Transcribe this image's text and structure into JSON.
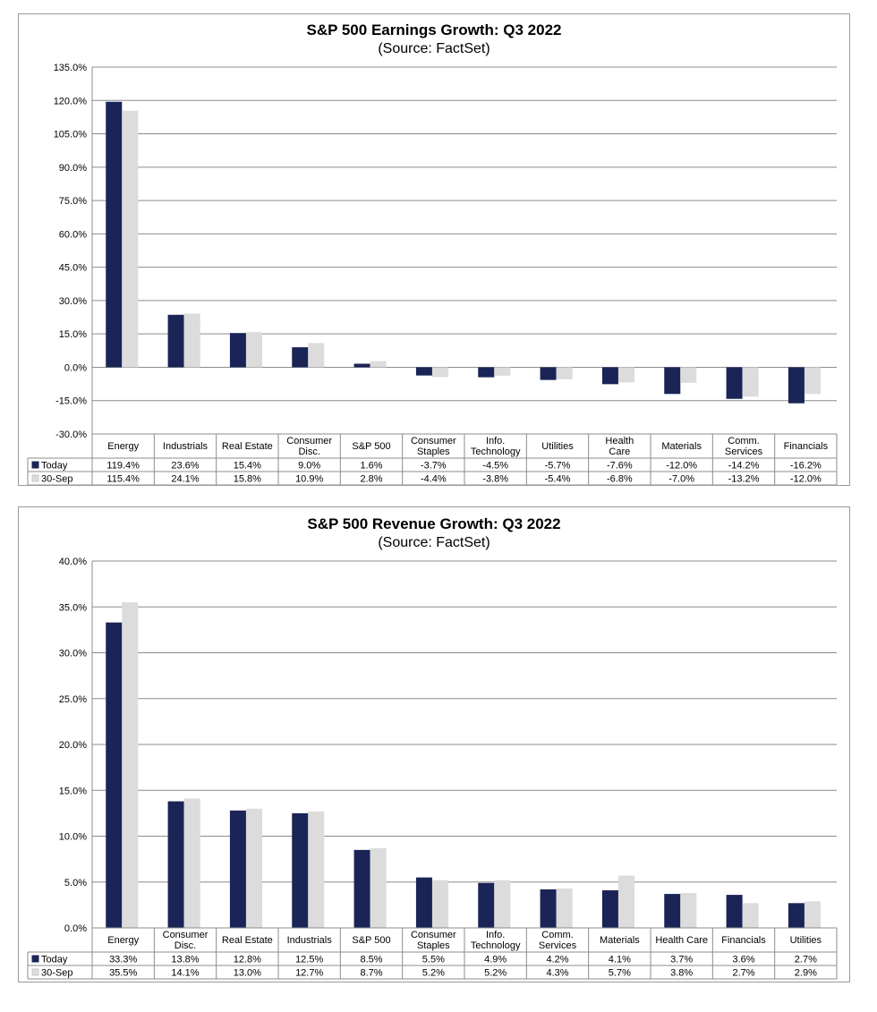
{
  "chart_data": [
    {
      "type": "bar",
      "title": "S&P 500 Earnings Growth: Q3 2022",
      "subtitle": "(Source: FactSet)",
      "ylim": [
        -30,
        135
      ],
      "yticks": [
        -30,
        -15,
        0,
        15,
        30,
        45,
        60,
        75,
        90,
        105,
        120,
        135
      ],
      "ytick_labels": [
        "-30.0%",
        "-15.0%",
        "0.0%",
        "15.0%",
        "30.0%",
        "45.0%",
        "60.0%",
        "75.0%",
        "90.0%",
        "105.0%",
        "120.0%",
        "135.0%"
      ],
      "grid": true,
      "legend": "table-left",
      "categories": [
        [
          "Energy"
        ],
        [
          "Industrials"
        ],
        [
          "Real Estate"
        ],
        [
          "Consumer",
          "Disc."
        ],
        [
          "S&P 500"
        ],
        [
          "Consumer",
          "Staples"
        ],
        [
          "Info.",
          "Technology"
        ],
        [
          "Utilities"
        ],
        [
          "Health",
          "Care"
        ],
        [
          "Materials"
        ],
        [
          "Comm.",
          "Services"
        ],
        [
          "Financials"
        ]
      ],
      "series": [
        {
          "name": "Today",
          "color": "#1a2456",
          "values": [
            119.4,
            23.6,
            15.4,
            9.0,
            1.6,
            -3.7,
            -4.5,
            -5.7,
            -7.6,
            -12.0,
            -14.2,
            -16.2
          ],
          "labels": [
            "119.4%",
            "23.6%",
            "15.4%",
            "9.0%",
            "1.6%",
            "-3.7%",
            "-4.5%",
            "-5.7%",
            "-7.6%",
            "-12.0%",
            "-14.2%",
            "-16.2%"
          ]
        },
        {
          "name": "30-Sep",
          "color": "#dcdcdc",
          "values": [
            115.4,
            24.1,
            15.8,
            10.9,
            2.8,
            -4.4,
            -3.8,
            -5.4,
            -6.8,
            -7.0,
            -13.2,
            -12.0
          ],
          "labels": [
            "115.4%",
            "24.1%",
            "15.8%",
            "10.9%",
            "2.8%",
            "-4.4%",
            "-3.8%",
            "-5.4%",
            "-6.8%",
            "-7.0%",
            "-13.2%",
            "-12.0%"
          ]
        }
      ]
    },
    {
      "type": "bar",
      "title": "S&P 500 Revenue Growth: Q3 2022",
      "subtitle": "(Source: FactSet)",
      "ylim": [
        0,
        40
      ],
      "yticks": [
        0,
        5,
        10,
        15,
        20,
        25,
        30,
        35,
        40
      ],
      "ytick_labels": [
        "0.0%",
        "5.0%",
        "10.0%",
        "15.0%",
        "20.0%",
        "25.0%",
        "30.0%",
        "35.0%",
        "40.0%"
      ],
      "grid": true,
      "legend": "table-left",
      "categories": [
        [
          "Energy"
        ],
        [
          "Consumer",
          "Disc."
        ],
        [
          "Real Estate"
        ],
        [
          "Industrials"
        ],
        [
          "S&P 500"
        ],
        [
          "Consumer",
          "Staples"
        ],
        [
          "Info.",
          "Technology"
        ],
        [
          "Comm.",
          "Services"
        ],
        [
          "Materials"
        ],
        [
          "Health Care"
        ],
        [
          "Financials"
        ],
        [
          "Utilities"
        ]
      ],
      "series": [
        {
          "name": "Today",
          "color": "#1a2456",
          "values": [
            33.3,
            13.8,
            12.8,
            12.5,
            8.5,
            5.5,
            4.9,
            4.2,
            4.1,
            3.7,
            3.6,
            2.7
          ],
          "labels": [
            "33.3%",
            "13.8%",
            "12.8%",
            "12.5%",
            "8.5%",
            "5.5%",
            "4.9%",
            "4.2%",
            "4.1%",
            "3.7%",
            "3.6%",
            "2.7%"
          ]
        },
        {
          "name": "30-Sep",
          "color": "#dcdcdc",
          "values": [
            35.5,
            14.1,
            13.0,
            12.7,
            8.7,
            5.2,
            5.2,
            4.3,
            5.7,
            3.8,
            2.7,
            2.9
          ],
          "labels": [
            "35.5%",
            "14.1%",
            "13.0%",
            "12.7%",
            "8.7%",
            "5.2%",
            "5.2%",
            "4.3%",
            "5.7%",
            "3.8%",
            "2.7%",
            "2.9%"
          ]
        }
      ]
    }
  ]
}
